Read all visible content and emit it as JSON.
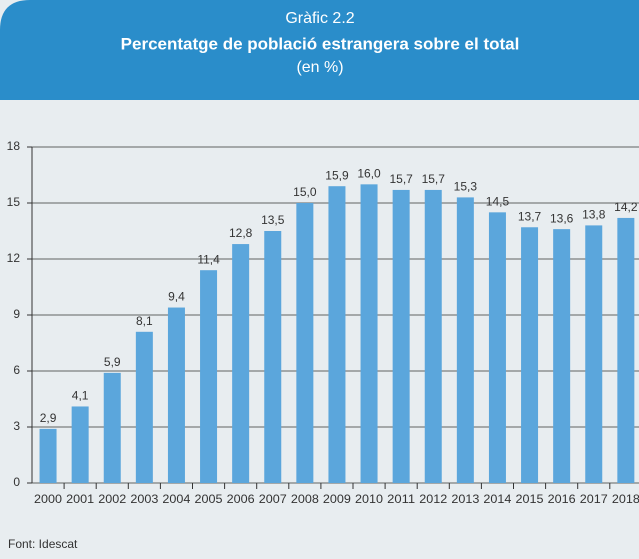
{
  "chart_data": {
    "type": "bar",
    "label": "Gràfic 2.2",
    "title": "Percentatge de població estrangera sobre el total",
    "subtitle": "(en %)",
    "source": "Font: Idescat",
    "categories": [
      "2000",
      "2001",
      "2002",
      "2003",
      "2004",
      "2005",
      "2006",
      "2007",
      "2008",
      "2009",
      "2010",
      "2011",
      "2012",
      "2013",
      "2014",
      "2015",
      "2016",
      "2017",
      "2018"
    ],
    "values": [
      2.9,
      4.1,
      5.9,
      8.1,
      9.4,
      11.4,
      12.8,
      13.5,
      15.0,
      15.9,
      16.0,
      15.7,
      15.7,
      15.3,
      14.5,
      13.7,
      13.6,
      13.8,
      14.2
    ],
    "value_labels": [
      "2,9",
      "4,1",
      "5,9",
      "8,1",
      "9,4",
      "11,4",
      "12,8",
      "13,5",
      "15,0",
      "15,9",
      "16,0",
      "15,7",
      "15,7",
      "15,3",
      "14,5",
      "13,7",
      "13,6",
      "13,8",
      "14,2"
    ],
    "color": "#5ba6dc",
    "ylim": [
      0,
      18
    ],
    "yticks": [
      0,
      3,
      6,
      9,
      12,
      15,
      18
    ],
    "grid": true
  }
}
